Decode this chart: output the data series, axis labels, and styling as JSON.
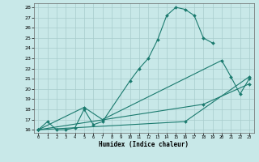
{
  "background_color": "#c8e8e8",
  "grid_color": "#a8cccc",
  "line_color": "#1a7a6e",
  "xlabel": "Humidex (Indice chaleur)",
  "xlim": [
    -0.5,
    23.5
  ],
  "ylim": [
    15.7,
    28.4
  ],
  "xticks": [
    0,
    1,
    2,
    3,
    4,
    5,
    6,
    7,
    8,
    9,
    10,
    11,
    12,
    13,
    14,
    15,
    16,
    17,
    18,
    19,
    20,
    21,
    22,
    23
  ],
  "yticks": [
    16,
    17,
    18,
    19,
    20,
    21,
    22,
    23,
    24,
    25,
    26,
    27,
    28
  ],
  "line1_x": [
    0,
    1,
    2,
    3,
    4,
    5,
    6,
    7,
    10,
    11,
    12,
    13,
    14,
    15,
    16,
    17,
    18,
    19
  ],
  "line1_y": [
    16.0,
    16.8,
    16.0,
    16.0,
    16.2,
    18.0,
    16.5,
    16.8,
    20.8,
    22.0,
    23.0,
    24.8,
    27.2,
    28.0,
    27.8,
    27.2,
    25.0,
    24.5
  ],
  "line2_x": [
    0,
    5,
    7,
    20,
    21,
    22,
    23
  ],
  "line2_y": [
    16.0,
    18.2,
    17.0,
    22.8,
    21.2,
    19.5,
    21.0
  ],
  "line3_x": [
    0,
    16,
    23
  ],
  "line3_y": [
    16.0,
    16.8,
    21.2
  ],
  "line4_x": [
    0,
    18,
    23
  ],
  "line4_y": [
    16.0,
    18.5,
    20.5
  ]
}
